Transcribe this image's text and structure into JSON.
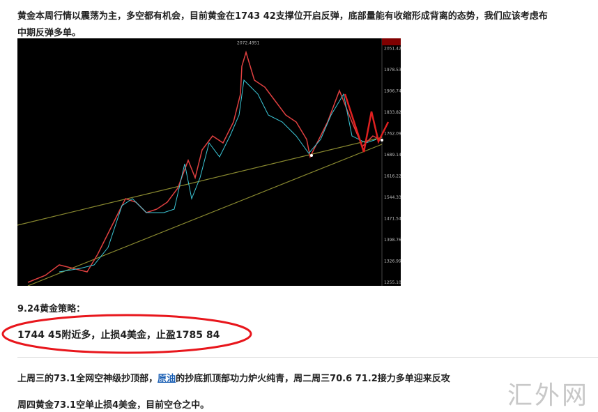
{
  "intro_lines": [
    "黄金本周行情以震荡为主，多空都有机会，目前黄金在1743 42支撑位开启反弹，底部量能有收缩形成背离的态势，我们应该考虑布",
    "中期反弹多单。"
  ],
  "chart_image": {
    "peak_label": "2072.4951",
    "price_labels": [
      "2051.42",
      "1978.53",
      "1906.74",
      "1833.82",
      "1762.09",
      "1689.14",
      "1616.22",
      "1544.33",
      "1471.54",
      "1398.76",
      "1326.99",
      "1255.10"
    ]
  },
  "strategy_title": "9.24黄金策略：",
  "strategy_text": "1744 45附近多，止损4美金，止盈1785 84",
  "review": {
    "before_link": "上周三的73.1全网空神级抄顶部，",
    "link": "原油",
    "after_link": "的抄底抓顶部功力炉火纯青，周二周三70.6  71.2接力多单迎来反攻"
  },
  "status": "周四黄金73.1空单止损4美金，目前空仓之中。",
  "watermark": "汇外网"
}
